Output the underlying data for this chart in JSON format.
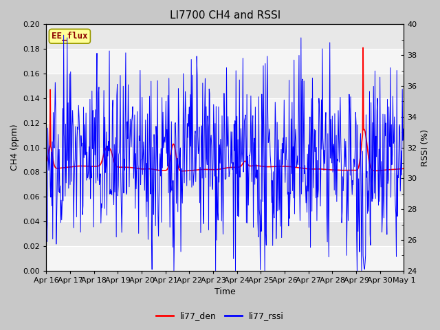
{
  "title": "LI7700 CH4 and RSSI",
  "xlabel": "Time",
  "ylabel_left": "CH4 (ppm)",
  "ylabel_right": "RSSI (%)",
  "ylim_left": [
    0.0,
    0.2
  ],
  "ylim_right": [
    24,
    40
  ],
  "yticks_left": [
    0.0,
    0.02,
    0.04,
    0.06,
    0.08,
    0.1,
    0.12,
    0.14,
    0.16,
    0.18,
    0.2
  ],
  "yticks_right": [
    24,
    26,
    28,
    30,
    32,
    34,
    36,
    38,
    40
  ],
  "yticks_right_minor": [
    25,
    27,
    29,
    31,
    33,
    35,
    37,
    39
  ],
  "xtick_labels": [
    "Apr 16",
    "Apr 17",
    "Apr 18",
    "Apr 19",
    "Apr 20",
    "Apr 21",
    "Apr 22",
    "Apr 23",
    "Apr 24",
    "Apr 25",
    "Apr 26",
    "Apr 27",
    "Apr 28",
    "Apr 29",
    "Apr 30",
    "May 1"
  ],
  "label_box_text": "EE_flux",
  "label_box_color": "#ffff99",
  "label_box_edge_color": "#999900",
  "label_box_text_color": "#8b0000",
  "legend_labels": [
    "li77_den",
    "li77_rssi"
  ],
  "line_color_ch4": "#ff0000",
  "line_color_rssi": "#0000ff",
  "fig_bg_color": "#c8c8c8",
  "plot_bg_color": "#e8e8e8",
  "band_color": "#f5f5f5",
  "grid_color": "#d0d0d0",
  "title_fontsize": 11,
  "axis_label_fontsize": 9,
  "tick_fontsize": 8,
  "legend_fontsize": 9
}
